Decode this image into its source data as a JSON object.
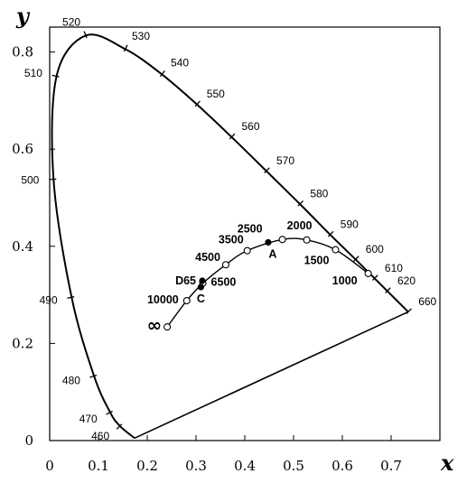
{
  "chart_data": {
    "type": "line",
    "xlabel": "x",
    "ylabel": "y",
    "xlim": [
      0,
      0.8
    ],
    "ylim": [
      0,
      0.85
    ],
    "x_ticks": [
      "0",
      "0.1",
      "0.2",
      "0.3",
      "0.4",
      "0.5",
      "0.6",
      "0.7"
    ],
    "y_ticks": [
      {
        "value": 0,
        "label": "0"
      },
      {
        "value": 0.2,
        "label": "0.2"
      },
      {
        "value": 0.4,
        "label": "0.4"
      },
      {
        "value": 0.6,
        "label": "0.6"
      },
      {
        "value": 0.8,
        "label": "0.8"
      }
    ],
    "grid": false,
    "spectral_locus": [
      {
        "x": 0.174,
        "y": 0.005,
        "label": ""
      },
      {
        "x": 0.144,
        "y": 0.03,
        "label": "460"
      },
      {
        "x": 0.124,
        "y": 0.058,
        "label": "470"
      },
      {
        "x": 0.091,
        "y": 0.133,
        "label": "480"
      },
      {
        "x": 0.045,
        "y": 0.295,
        "label": "490"
      },
      {
        "x": 0.008,
        "y": 0.538,
        "label": "500"
      },
      {
        "x": 0.014,
        "y": 0.75,
        "label": "510"
      },
      {
        "x": 0.074,
        "y": 0.834,
        "label": "520"
      },
      {
        "x": 0.155,
        "y": 0.806,
        "label": "530"
      },
      {
        "x": 0.23,
        "y": 0.754,
        "label": "540"
      },
      {
        "x": 0.302,
        "y": 0.692,
        "label": "550"
      },
      {
        "x": 0.373,
        "y": 0.625,
        "label": "560"
      },
      {
        "x": 0.444,
        "y": 0.555,
        "label": "570"
      },
      {
        "x": 0.513,
        "y": 0.487,
        "label": "580"
      },
      {
        "x": 0.575,
        "y": 0.424,
        "label": "590"
      },
      {
        "x": 0.627,
        "y": 0.373,
        "label": "600"
      },
      {
        "x": 0.666,
        "y": 0.334,
        "label": "610"
      },
      {
        "x": 0.692,
        "y": 0.308,
        "label": "620"
      },
      {
        "x": 0.735,
        "y": 0.265,
        "label": "660"
      }
    ],
    "planckian_locus": [
      {
        "x": 0.241,
        "y": 0.234,
        "label": "∞",
        "marker": "open"
      },
      {
        "x": 0.281,
        "y": 0.288,
        "label": "10000",
        "marker": "open"
      },
      {
        "x": 0.314,
        "y": 0.324,
        "label": "6500",
        "marker": "open"
      },
      {
        "x": 0.361,
        "y": 0.362,
        "label": "4500",
        "marker": "open"
      },
      {
        "x": 0.405,
        "y": 0.391,
        "label": "3500",
        "marker": "open"
      },
      {
        "x": 0.477,
        "y": 0.414,
        "label": "2500",
        "marker": "open"
      },
      {
        "x": 0.527,
        "y": 0.413,
        "label": "2000",
        "marker": "open"
      },
      {
        "x": 0.586,
        "y": 0.393,
        "label": "1500",
        "marker": "open"
      },
      {
        "x": 0.653,
        "y": 0.344,
        "label": "1000",
        "marker": "open"
      }
    ],
    "standard_illuminants": [
      {
        "x": 0.313,
        "y": 0.329,
        "label": "D65"
      },
      {
        "x": 0.31,
        "y": 0.316,
        "label": "C"
      },
      {
        "x": 0.448,
        "y": 0.408,
        "label": "A"
      }
    ]
  }
}
